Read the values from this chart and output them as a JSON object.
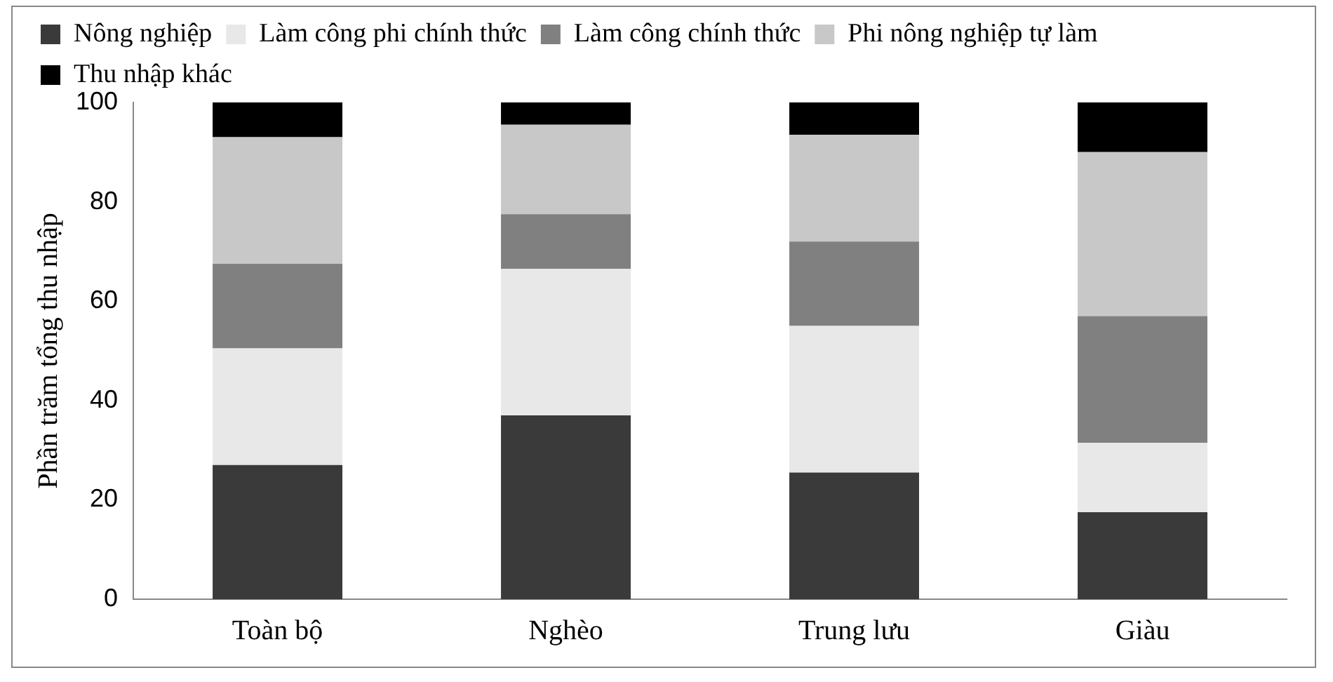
{
  "chart_data": {
    "type": "bar",
    "stacked": true,
    "ylabel": "Phần trăm tổng thu nhập",
    "categories": [
      "Toàn bộ",
      "Nghèo",
      "Trung lưu",
      "Giàu"
    ],
    "series": [
      {
        "name": "Nông nghiệp",
        "color": "#3a3a3a",
        "values": [
          27,
          37,
          25.5,
          17.5
        ]
      },
      {
        "name": "Làm công phi chính thức",
        "color": "#e8e8e8",
        "values": [
          23.5,
          29.5,
          29.5,
          14
        ]
      },
      {
        "name": "Làm công chính thức",
        "color": "#808080",
        "values": [
          17,
          11,
          17,
          25.5
        ]
      },
      {
        "name": "Phi nông nghiệp tự làm",
        "color": "#c8c8c8",
        "values": [
          25.5,
          18,
          21.5,
          33
        ]
      },
      {
        "name": "Thu nhập khác",
        "color": "#000000",
        "values": [
          7,
          4.5,
          6.5,
          10
        ]
      }
    ],
    "ylim": [
      0,
      100
    ],
    "yticks": [
      0,
      20,
      40,
      60,
      80,
      100
    ],
    "grid": false,
    "legend": "top"
  }
}
